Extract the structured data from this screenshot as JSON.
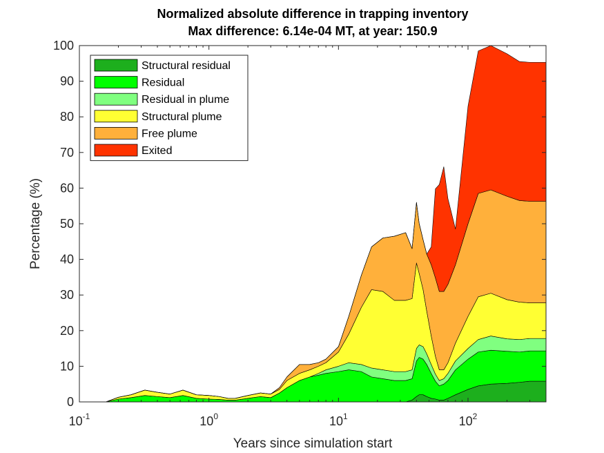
{
  "chart_data": {
    "type": "area",
    "title": "Normalized absolute difference in trapping inventory",
    "subtitle": "Max difference: 6.14e-04 MT, at year: 150.9",
    "xlabel": "Years since simulation start",
    "ylabel": "Percentage (%)",
    "xscale": "log",
    "xlim": [
      0.1,
      400
    ],
    "ylim": [
      0,
      100
    ],
    "xticks": [
      {
        "base": "10",
        "exp": "-1",
        "value": 0.1
      },
      {
        "base": "10",
        "exp": "0",
        "value": 1
      },
      {
        "base": "10",
        "exp": "1",
        "value": 10
      },
      {
        "base": "10",
        "exp": "2",
        "value": 100
      }
    ],
    "yticks": [
      "0",
      "10",
      "20",
      "30",
      "40",
      "50",
      "60",
      "70",
      "80",
      "90",
      "100"
    ],
    "legend_position": "top-left",
    "stacked": true,
    "x": [
      0.1,
      0.16,
      0.2,
      0.25,
      0.32,
      0.4,
      0.5,
      0.63,
      0.8,
      1.0,
      1.2,
      1.4,
      1.6,
      2.0,
      2.5,
      3.0,
      3.5,
      4.0,
      5.0,
      6.0,
      7.0,
      8.0,
      10.0,
      12.0,
      15.0,
      18.0,
      22.0,
      27.0,
      33.0,
      37.0,
      40.0,
      42.0,
      45.0,
      48.0,
      52.0,
      56.0,
      60.0,
      65.0,
      70.0,
      80.0,
      100.0,
      120.0,
      150.0,
      200.0,
      250.0,
      300.0,
      400.0
    ],
    "series": [
      {
        "name": "Structural residual",
        "color": "#1DAF1D",
        "values": [
          0,
          0,
          0,
          0,
          0,
          0,
          0,
          0,
          0,
          0,
          0,
          0,
          0,
          0,
          0,
          0,
          0,
          0,
          0,
          0,
          0,
          0,
          0,
          0,
          0,
          0,
          0,
          0,
          0,
          0.5,
          1.5,
          2.0,
          2.0,
          1.5,
          1.0,
          0.8,
          0.5,
          0.5,
          1.0,
          2.0,
          3.5,
          4.5,
          5.0,
          5.2,
          5.5,
          5.8,
          5.8
        ]
      },
      {
        "name": "Residual",
        "color": "#00FF00",
        "values": [
          0,
          0,
          0.8,
          1.2,
          1.8,
          1.5,
          1.2,
          1.8,
          1.0,
          0.8,
          0.7,
          0.5,
          0.5,
          1.0,
          1.5,
          1.2,
          2.5,
          4.0,
          6.0,
          7.0,
          7.5,
          8.0,
          8.5,
          9.0,
          8.5,
          7.0,
          6.5,
          6.0,
          6.0,
          6.0,
          10.0,
          10.5,
          10.0,
          9.0,
          7.0,
          5.0,
          4.0,
          4.5,
          5.0,
          7.0,
          8.5,
          9.5,
          9.5,
          9.0,
          8.5,
          8.5,
          8.5
        ]
      },
      {
        "name": "Residual in plume",
        "color": "#80FF80",
        "values": [
          0,
          0,
          0,
          0,
          0,
          0,
          0,
          0,
          0,
          0,
          0,
          0,
          0,
          0,
          0,
          0,
          0,
          0,
          0,
          0,
          0.5,
          1.0,
          1.5,
          2.0,
          2.0,
          2.5,
          2.5,
          2.5,
          2.5,
          2.5,
          3.5,
          3.5,
          3.5,
          3.0,
          2.5,
          2.0,
          1.5,
          1.5,
          2.0,
          2.5,
          3.0,
          3.5,
          4.0,
          3.5,
          3.5,
          3.5,
          3.5
        ]
      },
      {
        "name": "Structural plume",
        "color": "#FFFF33",
        "values": [
          0,
          0,
          0.5,
          0.8,
          1.5,
          1.2,
          1.0,
          1.5,
          1.0,
          1.0,
          0.8,
          0.5,
          0.5,
          0.8,
          1.0,
          1.0,
          1.0,
          2.0,
          2.0,
          2.0,
          2.0,
          2.0,
          4.0,
          8.0,
          16.0,
          22.0,
          22.0,
          20.0,
          20.0,
          20.0,
          24.0,
          20.0,
          16.0,
          12.0,
          8.0,
          5.0,
          3.0,
          2.5,
          3.0,
          5.0,
          9.0,
          12.0,
          12.0,
          11.0,
          10.5,
          10.0,
          10.0
        ]
      },
      {
        "name": "Free plume",
        "color": "#FFB03B",
        "values": [
          0,
          0,
          0,
          0,
          0,
          0,
          0,
          0,
          0,
          0,
          0,
          0,
          0,
          0,
          0,
          0,
          0.5,
          1.0,
          2.5,
          1.5,
          1.0,
          1.0,
          1.5,
          5.0,
          9.0,
          12.0,
          15.0,
          18.0,
          19.0,
          14.0,
          17.0,
          14.0,
          14.0,
          16.0,
          20.0,
          22.0,
          22.0,
          22.0,
          22.0,
          22.0,
          26.0,
          29.0,
          29.0,
          29.0,
          28.5,
          28.5,
          28.5
        ]
      },
      {
        "name": "Exited",
        "color": "#FF3300",
        "values": [
          0,
          0,
          0,
          0,
          0,
          0,
          0,
          0,
          0,
          0,
          0,
          0,
          0,
          0,
          0,
          0,
          0,
          0,
          0,
          0,
          0,
          0,
          0,
          0,
          0,
          0,
          0,
          0,
          0,
          0,
          0,
          0,
          0,
          0,
          5.0,
          25.0,
          30.0,
          35.0,
          24.0,
          10.0,
          33.0,
          40.0,
          40.5,
          40.0,
          39.0,
          39.0,
          39.0
        ]
      }
    ]
  }
}
